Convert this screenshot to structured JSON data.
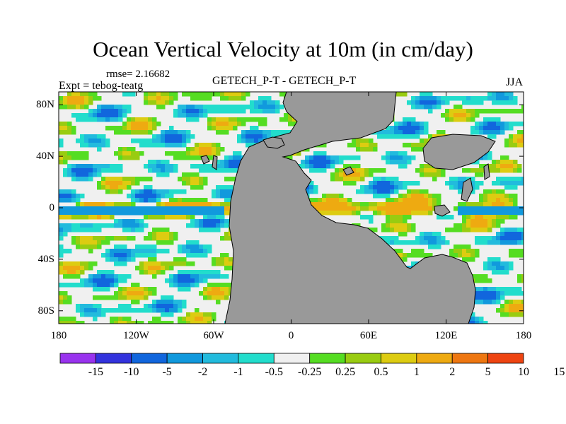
{
  "title": "Ocean Vertical Velocity at 10m (in cm/day)",
  "rmse_label": "rmse= 2.16682",
  "expt_label": "Expt = tebog-teatg",
  "center_label": "GETECH_P-T - GETECH_P-T",
  "season_label": "JJA",
  "map": {
    "projection": "cylindrical equidistant",
    "lon_range": [
      -180,
      180
    ],
    "lat_range": [
      -90,
      90
    ],
    "land_color": "#999999",
    "y_ticks": [
      {
        "lat": 80,
        "label": "80N"
      },
      {
        "lat": 40,
        "label": "40N"
      },
      {
        "lat": 0,
        "label": "0"
      },
      {
        "lat": -40,
        "label": "40S"
      },
      {
        "lat": -80,
        "label": "80S"
      }
    ],
    "x_ticks": [
      {
        "lon": -180,
        "label": "180"
      },
      {
        "lon": -120,
        "label": "120W"
      },
      {
        "lon": -60,
        "label": "60W"
      },
      {
        "lon": 0,
        "label": "0"
      },
      {
        "lon": 60,
        "label": "60E"
      },
      {
        "lon": 120,
        "label": "120E"
      },
      {
        "lon": 180,
        "label": "180"
      }
    ]
  },
  "colorbar": {
    "colors": [
      "#9933ee",
      "#3333dd",
      "#1166dd",
      "#1199dd",
      "#22bbdd",
      "#22ddcc",
      "#f0f0f0",
      "#55dd22",
      "#99cc11",
      "#ddcc11",
      "#eeaa11",
      "#ee7711",
      "#ee4411"
    ],
    "labels": [
      "-15",
      "-10",
      "-5",
      "-2",
      "-1",
      "-0.5",
      "-0.25",
      "0.25",
      "0.5",
      "1",
      "2",
      "5",
      "10",
      "15"
    ]
  }
}
